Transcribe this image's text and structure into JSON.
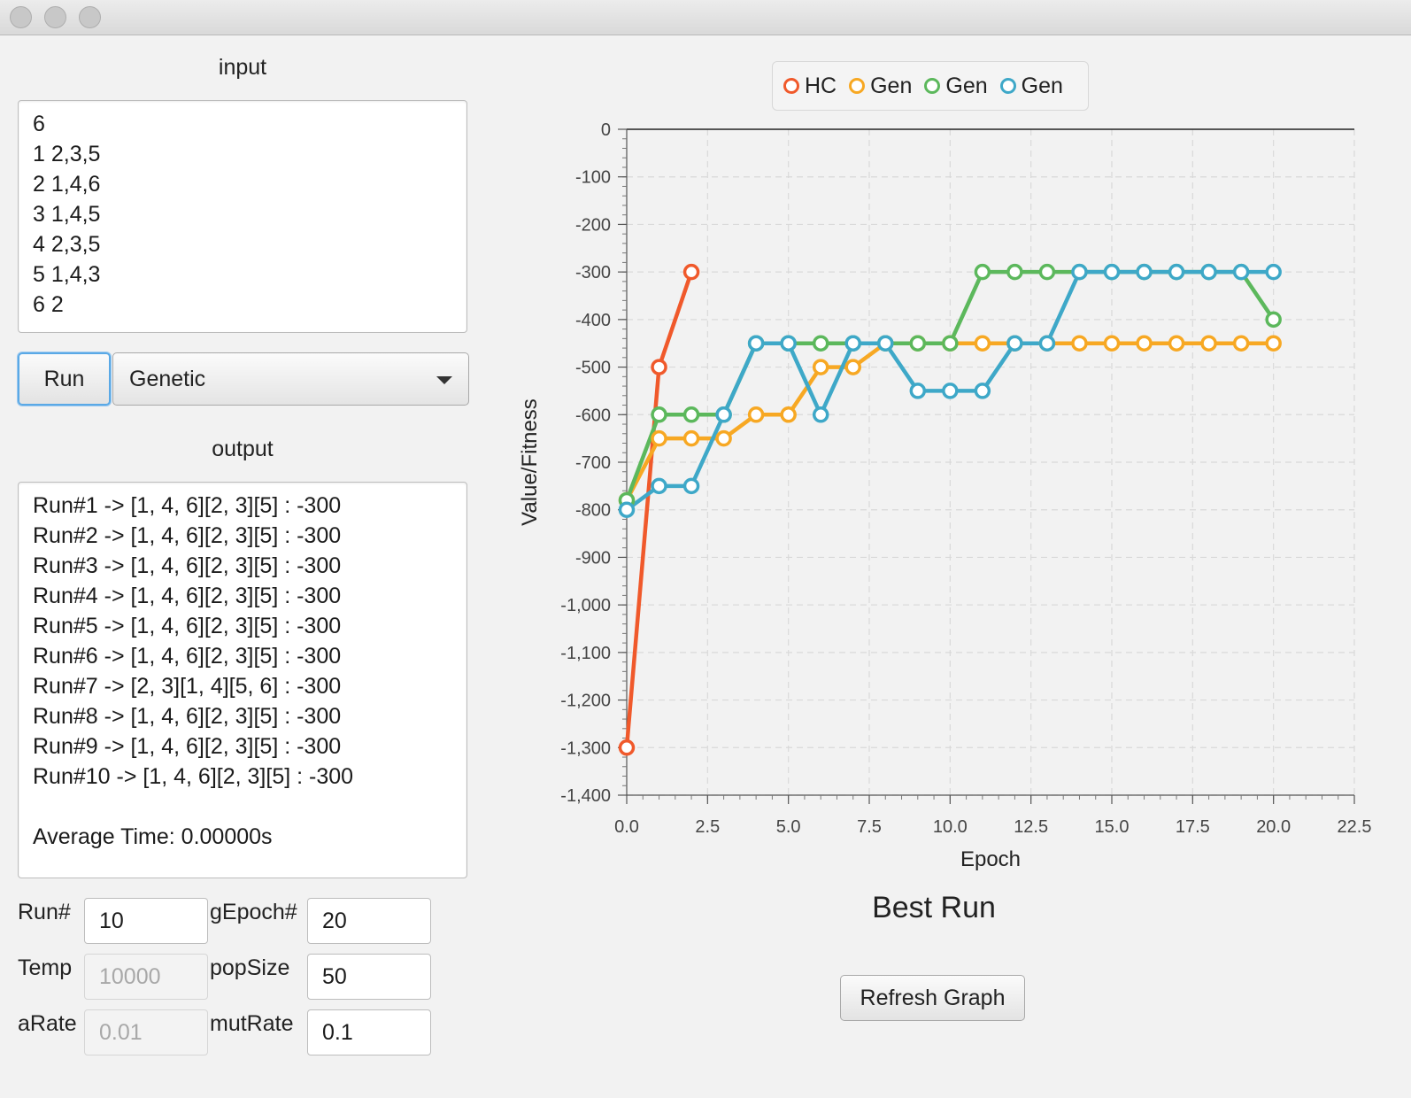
{
  "window": {
    "traffic_lights": [
      "close",
      "minimize",
      "maximize"
    ]
  },
  "input": {
    "label": "input",
    "lines": [
      "6",
      "1 2,3,5",
      "2 1,4,6",
      "3 1,4,5",
      "4 2,3,5",
      "5 1,4,3",
      "6 2"
    ]
  },
  "controls": {
    "run_label": "Run",
    "algorithm_selected": "Genetic"
  },
  "output": {
    "label": "output",
    "lines": [
      "Run#1 -> [1, 4, 6][2, 3][5] : -300",
      "Run#2 -> [1, 4, 6][2, 3][5] : -300",
      "Run#3 -> [1, 4, 6][2, 3][5] : -300",
      "Run#4 -> [1, 4, 6][2, 3][5] : -300",
      "Run#5 -> [1, 4, 6][2, 3][5] : -300",
      "Run#6 -> [1, 4, 6][2, 3][5] : -300",
      "Run#7 -> [2, 3][1, 4][5, 6] : -300",
      "Run#8 -> [1, 4, 6][2, 3][5] : -300",
      "Run#9 -> [1, 4, 6][2, 3][5] : -300",
      "Run#10 -> [1, 4, 6][2, 3][5] : -300",
      "",
      "Average Time: 0.00000s"
    ]
  },
  "params": {
    "run_label": "Run#",
    "run_value": "10",
    "temp_label": "Temp",
    "temp_value": "10000",
    "arate_label": "aRate",
    "arate_value": "0.01",
    "gepoch_label": "gEpoch#",
    "gepoch_value": "20",
    "popsize_label": "popSize",
    "popsize_value": "50",
    "mutrate_label": "mutRate",
    "mutrate_value": "0.1"
  },
  "chart_title": "Best Run",
  "refresh_label": "Refresh Graph",
  "chart_data": {
    "type": "line",
    "xlabel": "Epoch",
    "ylabel": "Value/Fitness",
    "xlim": [
      0,
      22.5
    ],
    "ylim": [
      -1400,
      0
    ],
    "xticks": [
      0,
      2.5,
      5,
      7.5,
      10,
      12.5,
      15,
      17.5,
      20,
      22.5
    ],
    "xtick_labels": [
      "0.0",
      "2.5",
      "5.0",
      "7.5",
      "10.0",
      "12.5",
      "15.0",
      "17.5",
      "20.0",
      "22.5"
    ],
    "yticks": [
      0,
      -100,
      -200,
      -300,
      -400,
      -500,
      -600,
      -700,
      -800,
      -900,
      -1000,
      -1100,
      -1200,
      -1300,
      -1400
    ],
    "ytick_labels": [
      "0",
      "-100",
      "-200",
      "-300",
      "-400",
      "-500",
      "-600",
      "-700",
      "-800",
      "-900",
      "-1,000",
      "-1,100",
      "-1,200",
      "-1,300",
      "-1,400"
    ],
    "grid": true,
    "legend_position": "top",
    "series": [
      {
        "name": "HC",
        "color": "#f0592b",
        "x": [
          0,
          1,
          2
        ],
        "y": [
          -1300,
          -500,
          -300
        ]
      },
      {
        "name": "Gen",
        "color": "#f7a823",
        "x": [
          0,
          1,
          2,
          3,
          4,
          5,
          6,
          7,
          8,
          9,
          10,
          11,
          12,
          13,
          14,
          15,
          16,
          17,
          18,
          19,
          20
        ],
        "y": [
          -780,
          -650,
          -650,
          -650,
          -600,
          -600,
          -500,
          -500,
          -450,
          -450,
          -450,
          -450,
          -450,
          -450,
          -450,
          -450,
          -450,
          -450,
          -450,
          -450,
          -450
        ]
      },
      {
        "name": "Gen",
        "color": "#5cb85c",
        "x": [
          0,
          1,
          2,
          3,
          4,
          5,
          6,
          7,
          8,
          9,
          10,
          11,
          12,
          13,
          14,
          15,
          16,
          17,
          18,
          19,
          20
        ],
        "y": [
          -780,
          -600,
          -600,
          -600,
          -450,
          -450,
          -450,
          -450,
          -450,
          -450,
          -450,
          -300,
          -300,
          -300,
          -300,
          -300,
          -300,
          -300,
          -300,
          -300,
          -400
        ]
      },
      {
        "name": "Gen",
        "color": "#3ea8c8",
        "x": [
          0,
          1,
          2,
          3,
          4,
          5,
          6,
          7,
          8,
          9,
          10,
          11,
          12,
          13,
          14,
          15,
          16,
          17,
          18,
          19,
          20
        ],
        "y": [
          -800,
          -750,
          -750,
          -600,
          -450,
          -450,
          -600,
          -450,
          -450,
          -550,
          -550,
          -550,
          -450,
          -450,
          -300,
          -300,
          -300,
          -300,
          -300,
          -300,
          -300
        ]
      }
    ]
  }
}
